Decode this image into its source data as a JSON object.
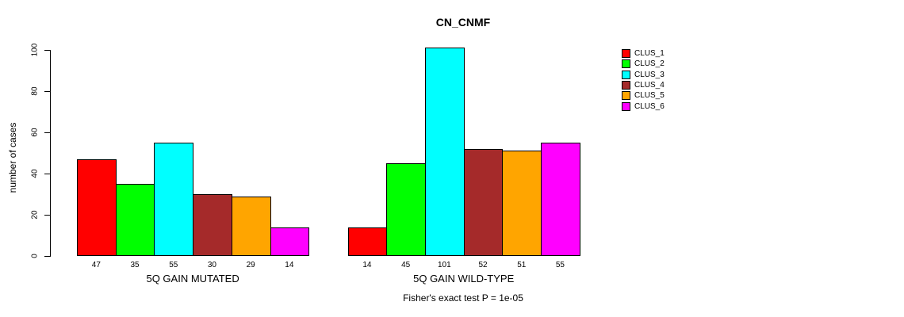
{
  "chart_data": {
    "type": "bar",
    "title": "CN_CNMF",
    "ylabel": "number of cases",
    "xlabel": "",
    "ylim": [
      0,
      100
    ],
    "yticks": [
      "0",
      "20",
      "40",
      "60",
      "80",
      "100"
    ],
    "ytick_values": [
      0,
      20,
      40,
      60,
      80,
      100
    ],
    "grid": false,
    "legend_position": "right",
    "groups": [
      {
        "label": "5Q GAIN MUTATED",
        "values": [
          47,
          35,
          55,
          30,
          29,
          14
        ],
        "bar_labels": [
          "47",
          "35",
          "55",
          "30",
          "29",
          "14"
        ]
      },
      {
        "label": "5Q GAIN WILD-TYPE",
        "values": [
          14,
          45,
          101,
          52,
          51,
          55
        ],
        "bar_labels": [
          "14",
          "45",
          "101",
          "52",
          "51",
          "55"
        ]
      }
    ],
    "series_colors": [
      "#FF0000",
      "#00FF00",
      "#00FFFF",
      "#A52A2A",
      "#FFA500",
      "#FF00FF"
    ],
    "legend": [
      {
        "label": "CLUS_1",
        "color": "#FF0000"
      },
      {
        "label": "CLUS_2",
        "color": "#00FF00"
      },
      {
        "label": "CLUS_3",
        "color": "#00FFFF"
      },
      {
        "label": "CLUS_4",
        "color": "#A52A2A"
      },
      {
        "label": "CLUS_5",
        "color": "#FFA500"
      },
      {
        "label": "CLUS_6",
        "color": "#FF00FF"
      }
    ],
    "annotation": "Fisher's exact test P = 1e-05"
  }
}
